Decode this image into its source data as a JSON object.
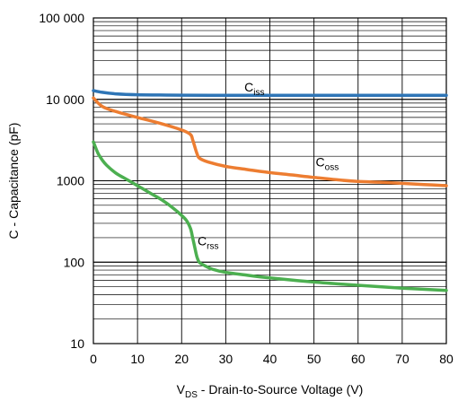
{
  "chart_data": {
    "type": "line",
    "x_scale": "linear",
    "y_scale": "log",
    "xlim": [
      0,
      80
    ],
    "ylim": [
      10,
      100000
    ],
    "grid": true,
    "x_ticks": [
      0,
      10,
      20,
      30,
      40,
      50,
      60,
      70,
      80
    ],
    "x_tick_labels": [
      "0",
      "10",
      "20",
      "30",
      "40",
      "50",
      "60",
      "70",
      "80"
    ],
    "y_ticks": [
      10,
      100,
      1000,
      10000,
      100000
    ],
    "y_tick_labels": [
      "10",
      "100",
      "1000",
      "10 000",
      "100 000"
    ],
    "xlabel": {
      "main": "V",
      "sub": "DS",
      "rest": " - Drain-to-Source Voltage (V)"
    },
    "ylabel": "C - Capacitance (pF)",
    "series": [
      {
        "name": {
          "main": "C",
          "sub": "iss"
        },
        "color": "#2e75b6",
        "x": [
          0,
          2,
          5,
          10,
          15,
          20,
          30,
          40,
          50,
          60,
          70,
          80
        ],
        "values": [
          12800,
          12200,
          11700,
          11400,
          11300,
          11250,
          11200,
          11200,
          11200,
          11200,
          11200,
          11200
        ]
      },
      {
        "name": {
          "main": "C",
          "sub": "oss"
        },
        "color": "#ed7d31",
        "x": [
          0,
          2,
          5,
          10,
          15,
          20,
          22,
          22.5,
          23,
          23.5,
          24,
          26,
          30,
          35,
          40,
          45,
          50,
          55,
          60,
          65,
          70,
          75,
          80
        ],
        "values": [
          10400,
          8200,
          7100,
          6000,
          5100,
          4200,
          3700,
          3200,
          2600,
          2150,
          1900,
          1700,
          1500,
          1370,
          1260,
          1180,
          1100,
          1030,
          980,
          960,
          930,
          900,
          870
        ]
      },
      {
        "name": {
          "main": "C",
          "sub": "rss"
        },
        "color": "#4caf50",
        "x": [
          0,
          1,
          2,
          3,
          5,
          7,
          10,
          13,
          16,
          19,
          21,
          22,
          22.5,
          23,
          23.5,
          24,
          25,
          27,
          30,
          35,
          40,
          50,
          60,
          70,
          80
        ],
        "values": [
          3000,
          2200,
          1800,
          1550,
          1250,
          1080,
          870,
          700,
          560,
          420,
          330,
          260,
          200,
          150,
          115,
          100,
          92,
          82,
          75,
          69,
          64,
          57,
          52,
          48,
          45
        ]
      }
    ]
  }
}
